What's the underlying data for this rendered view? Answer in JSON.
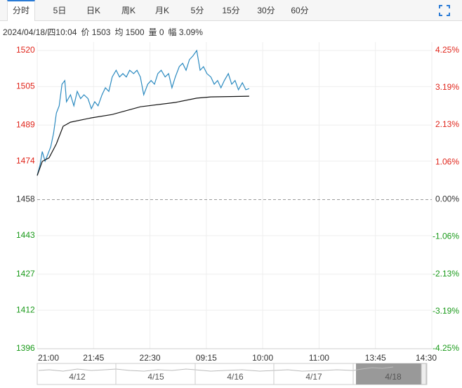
{
  "tabs": [
    "分时",
    "5日",
    "日K",
    "周K",
    "月K",
    "5分",
    "15分",
    "30分",
    "60分"
  ],
  "info": [
    "2024/04/18/四10:04",
    "价 1503",
    "均 1500",
    "量 0",
    "幅 3.09%"
  ],
  "navigator": [
    "4/12",
    "4/15",
    "4/16",
    "4/17",
    "4/18"
  ],
  "chart_data": {
    "type": "line",
    "ylim": [
      1396,
      1520
    ],
    "yticks": [
      1520,
      1505,
      1489,
      1474,
      1458,
      1443,
      1427,
      1412,
      1396
    ],
    "y2lim": [
      -4.25,
      4.25
    ],
    "y2ticks": [
      {
        "value": 4.25,
        "label": "4.25%"
      },
      {
        "value": 3.19,
        "label": "3.19%"
      },
      {
        "value": 2.13,
        "label": "2.13%"
      },
      {
        "value": 1.06,
        "label": "1.06%"
      },
      {
        "value": 0,
        "label": "0.00%"
      },
      {
        "value": -1.06,
        "label": "-1.06%"
      },
      {
        "value": -2.13,
        "label": "-2.13%"
      },
      {
        "value": -3.19,
        "label": "-3.19%"
      },
      {
        "value": -4.25,
        "label": "-4.25%"
      }
    ],
    "xlim": [
      0,
      7
    ],
    "xticks": [
      {
        "value": 0,
        "label": "21:00"
      },
      {
        "value": 1,
        "label": "21:45"
      },
      {
        "value": 2,
        "label": "22:30"
      },
      {
        "value": 3,
        "label": "09:15"
      },
      {
        "value": 4,
        "label": "10:00"
      },
      {
        "value": 5,
        "label": "11:00"
      },
      {
        "value": 6,
        "label": "13:45"
      },
      {
        "value": 7,
        "label": "14:30"
      }
    ],
    "reference_line": 1458,
    "grid": true,
    "series": [
      {
        "color": "#2b8ac0",
        "x": [
          0,
          0.05,
          0.09,
          0.14,
          0.19,
          0.24,
          0.29,
          0.34,
          0.39,
          0.44,
          0.49,
          0.52,
          0.59,
          0.65,
          0.71,
          0.77,
          0.83,
          0.9,
          0.96,
          1.02,
          1.08,
          1.15,
          1.21,
          1.27,
          1.33,
          1.4,
          1.46,
          1.52,
          1.58,
          1.64,
          1.71,
          1.77,
          1.83,
          1.89,
          1.96,
          2.02,
          2.08,
          2.14,
          2.2,
          2.27,
          2.33,
          2.39,
          2.45,
          2.52,
          2.58,
          2.64,
          2.7,
          2.76,
          2.83,
          2.89,
          2.95,
          3.01,
          3.08,
          3.14,
          3.2,
          3.26,
          3.32,
          3.39,
          3.45,
          3.51,
          3.57,
          3.64,
          3.7,
          3.76
        ],
        "values": [
          1468,
          1472.4,
          1478,
          1474,
          1477,
          1480,
          1485.6,
          1494,
          1497,
          1506,
          1507.5,
          1498.7,
          1501.6,
          1497,
          1503,
          1500,
          1501.6,
          1500,
          1495.8,
          1498.7,
          1497,
          1501.6,
          1504.5,
          1503,
          1509,
          1511.8,
          1509,
          1510.4,
          1509,
          1511.8,
          1510.4,
          1511.8,
          1509,
          1501.6,
          1506,
          1507.5,
          1506,
          1510.4,
          1511.8,
          1509,
          1510.4,
          1504.5,
          1509,
          1513.3,
          1514.7,
          1511.8,
          1516.2,
          1517.7,
          1520,
          1511.8,
          1513.3,
          1510.4,
          1509,
          1506,
          1507.5,
          1504.5,
          1507.5,
          1510.4,
          1506,
          1507.5,
          1503.7,
          1506.6,
          1503.7,
          1504.2
        ]
      },
      {
        "color": "#111111",
        "x": [
          0,
          0.09,
          0.21,
          0.34,
          0.46,
          0.59,
          0.96,
          1.33,
          1.83,
          2.45,
          2.83,
          3.08,
          3.76
        ],
        "values": [
          1468,
          1473.9,
          1475.4,
          1481.2,
          1488.5,
          1490.2,
          1492,
          1493.4,
          1496.6,
          1498.4,
          1500.2,
          1500.7,
          1501
        ]
      }
    ]
  }
}
